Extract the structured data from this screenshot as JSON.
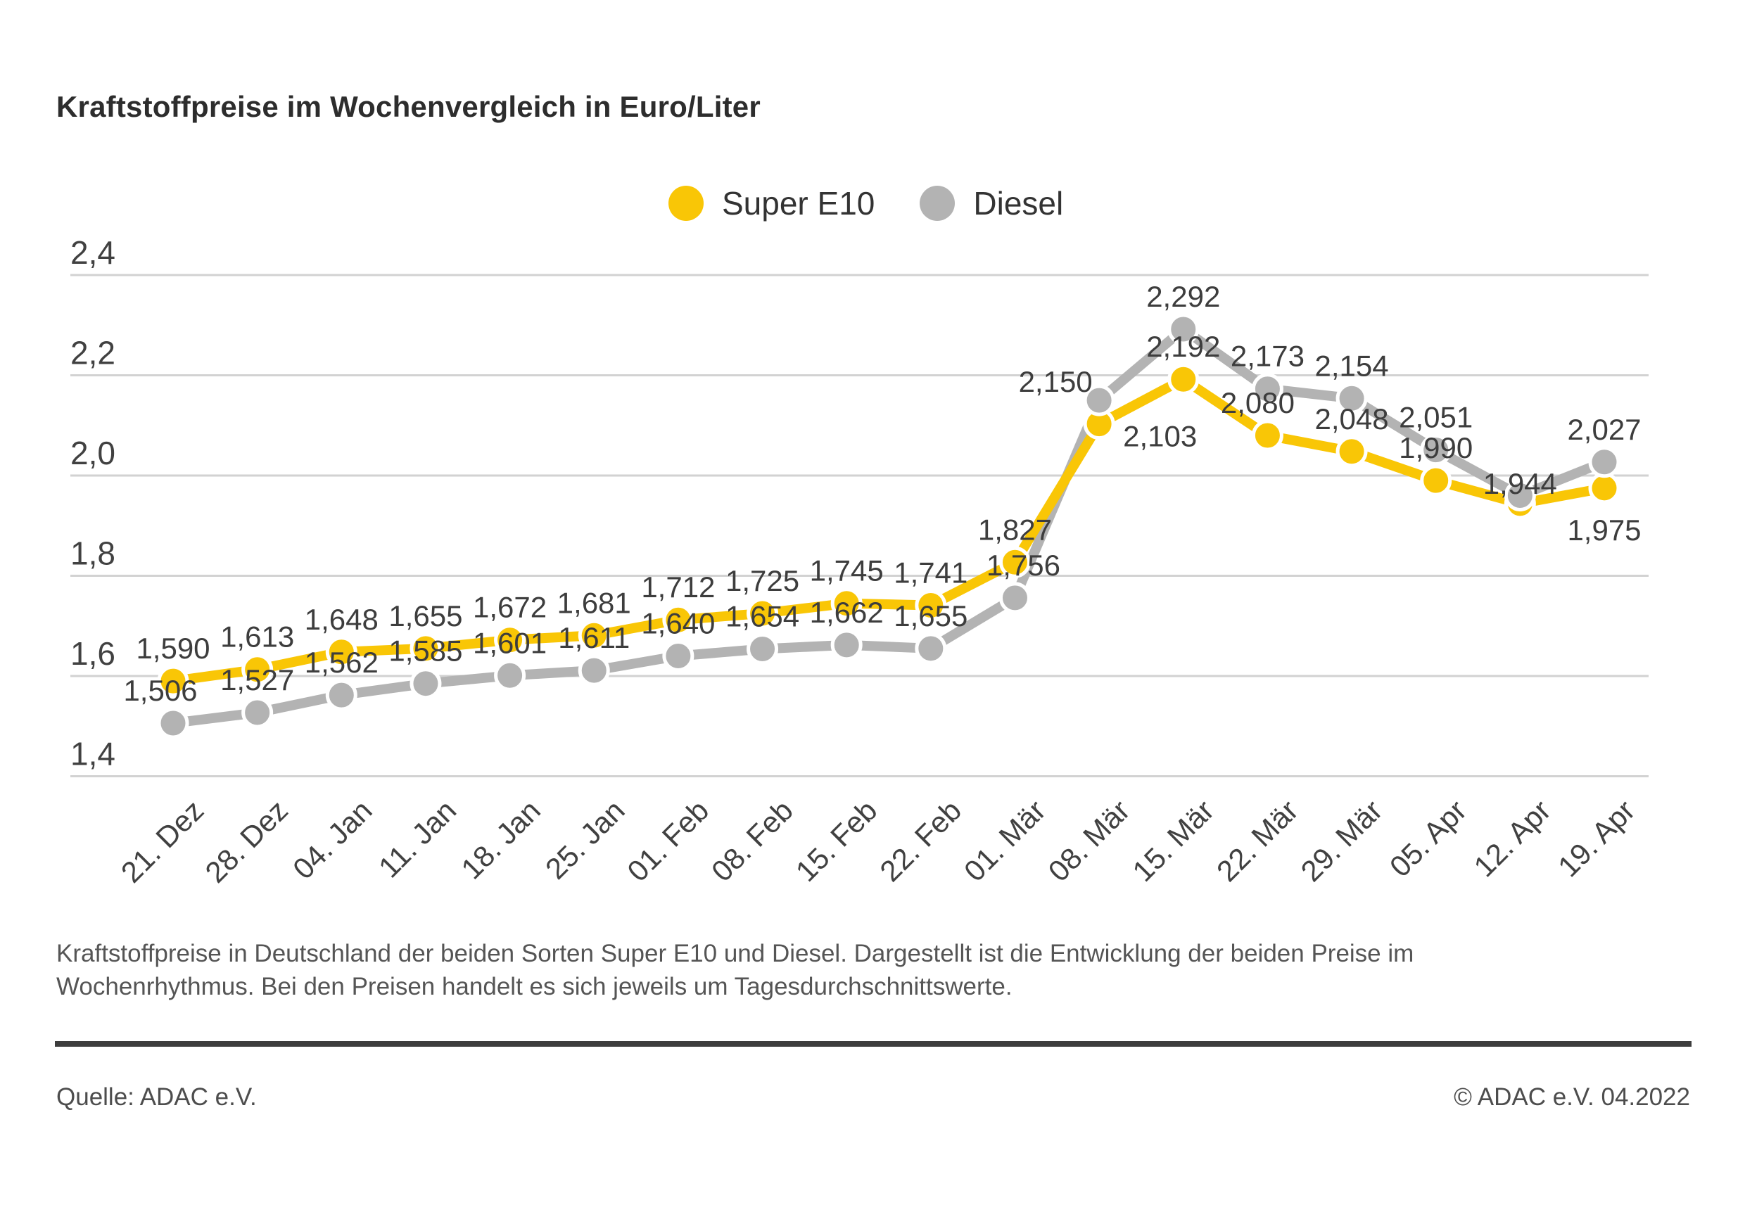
{
  "title": "Kraftstoffpreise im Wochenvergleich in Euro/Liter",
  "chart_data": {
    "type": "line",
    "title": "Kraftstoffpreise im Wochenvergleich in Euro/Liter",
    "unit": "Euro/Liter",
    "categories": [
      "21. Dez",
      "28. Dez",
      "04. Jan",
      "11. Jan",
      "18. Jan",
      "25. Jan",
      "01. Feb",
      "08. Feb",
      "15. Feb",
      "22. Feb",
      "01. Mär",
      "08. Mär",
      "15. Mär",
      "22. Mär",
      "29. Mär",
      "05. Apr",
      "12. Apr",
      "19. Apr"
    ],
    "series": [
      {
        "name": "Super E10",
        "color": "#F9C606",
        "values": [
          1.59,
          1.613,
          1.648,
          1.655,
          1.672,
          1.681,
          1.712,
          1.725,
          1.745,
          1.741,
          1.827,
          2.103,
          2.192,
          2.08,
          2.048,
          1.99,
          1.944,
          1.975
        ],
        "labels": [
          "1,590",
          "1,613",
          "1,648",
          "1,655",
          "1,672",
          "1,681",
          "1,712",
          "1,725",
          "1,745",
          "1,741",
          "1,827",
          "2,103",
          "2,192",
          "2,080",
          "2,048",
          "1,990",
          "1,944",
          "1,975"
        ],
        "label_side": [
          "above",
          "above",
          "above",
          "above",
          "above",
          "above",
          "above",
          "above",
          "above",
          "above",
          "above",
          "right",
          "above",
          "above",
          "above",
          "above",
          "above",
          "below"
        ],
        "label_dx": [
          0,
          0,
          0,
          0,
          0,
          0,
          0,
          0,
          0,
          0,
          0,
          0,
          0,
          -14,
          0,
          0,
          0,
          0
        ],
        "label_dy": [
          0,
          0,
          0,
          0,
          0,
          0,
          0,
          0,
          0,
          0,
          0,
          0,
          0,
          0,
          0,
          0,
          18,
          0
        ]
      },
      {
        "name": "Diesel",
        "color": "#B3B3B3",
        "values": [
          1.506,
          1.527,
          1.562,
          1.585,
          1.601,
          1.611,
          1.64,
          1.654,
          1.662,
          1.655,
          1.756,
          2.15,
          2.292,
          2.173,
          2.154,
          2.051,
          1.96,
          2.027
        ],
        "labels": [
          "1,506",
          "1,527",
          "1,562",
          "1,585",
          "1,601",
          "1,611",
          "1,640",
          "1,654",
          "1,662",
          "1,655",
          "1,756",
          "2,150",
          "2,292",
          "2,173",
          "2,154",
          "2,051",
          null,
          "2,027"
        ],
        "label_side": [
          "above",
          "above",
          "above",
          "above",
          "above",
          "above",
          "above",
          "above",
          "above",
          "above",
          "above",
          "above",
          "above",
          "above",
          "above",
          "above",
          "above",
          "above"
        ],
        "label_dx": [
          -18,
          0,
          0,
          0,
          0,
          0,
          0,
          0,
          0,
          0,
          12,
          -62,
          0,
          0,
          0,
          0,
          0,
          0
        ],
        "label_dy": [
          0,
          0,
          0,
          0,
          0,
          0,
          0,
          0,
          0,
          0,
          0,
          20,
          0,
          0,
          0,
          0,
          0,
          0
        ]
      }
    ],
    "ylim": [
      1.4,
      2.4
    ],
    "yticks": [
      "2,4",
      "2,2",
      "2,0",
      "1,8",
      "1,6",
      "1,4"
    ],
    "grid": true,
    "legend_position": "top-center",
    "xlabel": "",
    "ylabel": "Euro/Liter"
  },
  "legend": {
    "items": [
      {
        "label": "Super E10"
      },
      {
        "label": "Diesel"
      }
    ]
  },
  "caption": {
    "line1": "Kraftstoffpreise in Deutschland der beiden Sorten Super E10 und Diesel. Dargestellt ist die Entwicklung der beiden Preise im",
    "line2": "Wochenrhythmus. Bei den Preisen handelt es sich jeweils um Tagesdurchschnittswerte."
  },
  "footer": {
    "source": "Quelle: ADAC e.V.",
    "copyright": "© ADAC e.V. 04.2022"
  }
}
